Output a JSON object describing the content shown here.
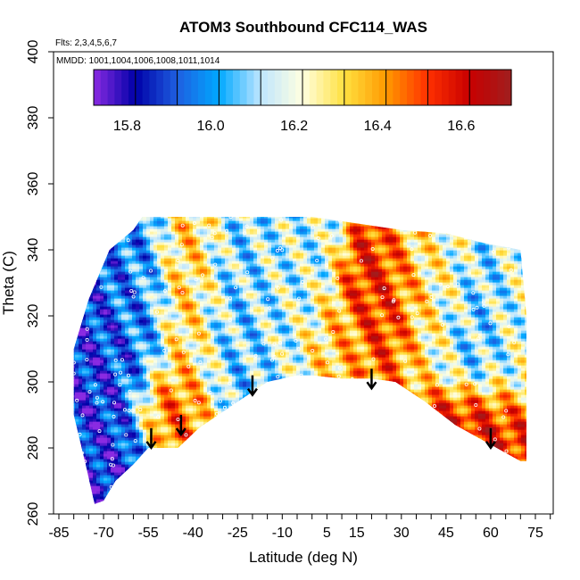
{
  "chart_data": {
    "type": "heatmap",
    "title": "ATOM3 Southbound CFC114_WAS",
    "subtitle_flights": "Flts: 2,3,4,5,6,7",
    "subtitle_dates": "MMDD: 1001,1004,1006,1008,1011,1014",
    "xlabel": "Latitude (deg N)",
    "ylabel": "Theta (C)",
    "xlim": [
      -85,
      85
    ],
    "ylim": [
      260,
      400
    ],
    "x_tick_labels": [
      "-85",
      "-70",
      "-55",
      "-40",
      "-25",
      "-10",
      "5",
      "15",
      "30",
      "45",
      "60",
      "75"
    ],
    "x_tick_values": [
      -85,
      -70,
      -55,
      -40,
      -25,
      -10,
      5,
      15,
      30,
      45,
      60,
      75
    ],
    "y_tick_labels": [
      "260",
      "280",
      "300",
      "320",
      "340",
      "360",
      "380",
      "400"
    ],
    "y_tick_values": [
      260,
      280,
      300,
      320,
      340,
      360,
      380,
      400
    ],
    "colorbar": {
      "min": 15.72,
      "max": 16.72,
      "tick_labels": [
        "15.8",
        "16.0",
        "16.2",
        "16.4",
        "16.6"
      ],
      "tick_values": [
        15.8,
        16.0,
        16.2,
        16.4,
        16.6
      ],
      "colors": [
        "#8a2be2",
        "#0000a8",
        "#1e5fe0",
        "#00a8ff",
        "#bfe6ff",
        "#ffffe0",
        "#ffe040",
        "#ff9a00",
        "#ff3000",
        "#c80000",
        "#a01e1e"
      ]
    },
    "data_boundary": {
      "lower": [
        [
          -73,
          263
        ],
        [
          -76,
          275
        ],
        [
          -80,
          290
        ],
        [
          -80,
          310
        ],
        [
          -75,
          325
        ],
        [
          -68,
          340
        ],
        [
          -60,
          346
        ],
        [
          -57,
          350
        ],
        [
          -42,
          350
        ],
        [
          -30,
          350
        ],
        [
          -15,
          350
        ],
        [
          0,
          350
        ],
        [
          15,
          348
        ],
        [
          30,
          346
        ],
        [
          45,
          345
        ],
        [
          58,
          342
        ],
        [
          70,
          340
        ],
        [
          72,
          320
        ],
        [
          72,
          300
        ],
        [
          72,
          285
        ],
        [
          72,
          276
        ]
      ],
      "upper_lower_edge": [
        [
          70,
          276
        ],
        [
          60,
          281
        ],
        [
          48,
          287
        ],
        [
          38,
          294
        ],
        [
          28,
          300
        ],
        [
          20,
          301
        ],
        [
          10,
          301
        ],
        [
          0,
          302
        ],
        [
          -5,
          302
        ],
        [
          -15,
          300
        ],
        [
          -25,
          294
        ],
        [
          -38,
          286
        ],
        [
          -45,
          280
        ],
        [
          -55,
          280
        ],
        [
          -60,
          275
        ],
        [
          -66,
          270
        ],
        [
          -70,
          264
        ]
      ]
    },
    "regions": [
      {
        "lat": [
          -80,
          -62
        ],
        "theta": [
          263,
          330
        ],
        "value": 15.85
      },
      {
        "lat": [
          -68,
          -52
        ],
        "theta": [
          300,
          345
        ],
        "value": 16.0
      },
      {
        "lat": [
          -55,
          -40
        ],
        "theta": [
          285,
          300
        ],
        "value": 16.5
      },
      {
        "lat": [
          -48,
          -35
        ],
        "theta": [
          300,
          345
        ],
        "value": 16.4
      },
      {
        "lat": [
          -38,
          -20
        ],
        "theta": [
          295,
          340
        ],
        "value": 16.05
      },
      {
        "lat": [
          -20,
          0
        ],
        "theta": [
          305,
          345
        ],
        "value": 16.15
      },
      {
        "lat": [
          0,
          15
        ],
        "theta": [
          302,
          320
        ],
        "value": 16.35
      },
      {
        "lat": [
          15,
          32
        ],
        "theta": [
          310,
          335
        ],
        "value": 16.55
      },
      {
        "lat": [
          32,
          48
        ],
        "theta": [
          305,
          340
        ],
        "value": 16.25
      },
      {
        "lat": [
          48,
          62
        ],
        "theta": [
          300,
          330
        ],
        "value": 16.05
      },
      {
        "lat": [
          40,
          72
        ],
        "theta": [
          280,
          295
        ],
        "value": 16.6
      },
      {
        "lat": [
          62,
          72
        ],
        "theta": [
          295,
          330
        ],
        "value": 16.2
      }
    ],
    "arrows": [
      {
        "lat": -54,
        "theta": 286
      },
      {
        "lat": -44,
        "theta": 290
      },
      {
        "lat": -20,
        "theta": 302
      },
      {
        "lat": 20,
        "theta": 304
      },
      {
        "lat": 60,
        "theta": 286
      }
    ]
  }
}
